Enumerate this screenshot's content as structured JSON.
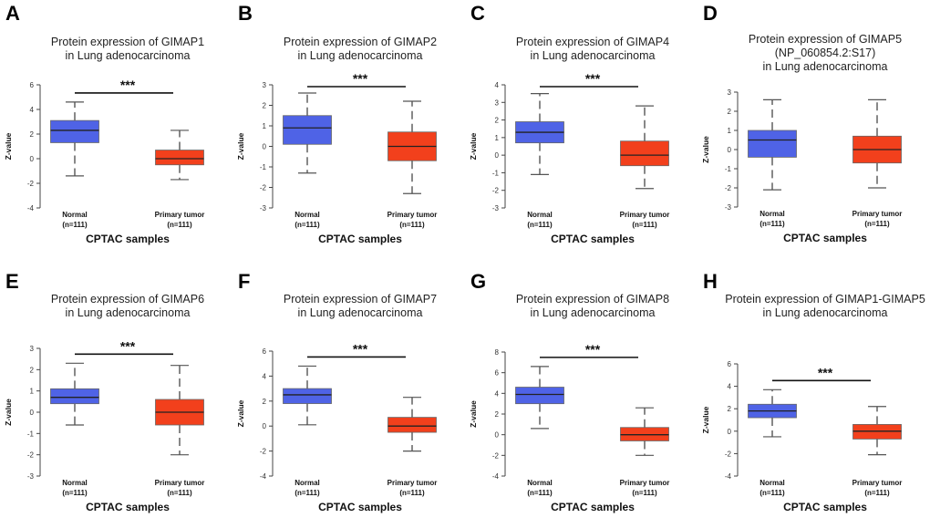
{
  "figure": {
    "colors": {
      "normal": "#4f63e6",
      "tumor": "#f2401c",
      "median": "#222222",
      "whisker": "#555555",
      "axis": "#444444"
    }
  },
  "chart_data": [
    {
      "letter": "A",
      "type": "box",
      "title": [
        "Protein expression of GIMAP1",
        "in Lung adenocarcinoma"
      ],
      "ylabel": "Z-value",
      "ylim": [
        -4,
        6
      ],
      "yticks": [
        -4,
        -2,
        0,
        2,
        4,
        6
      ],
      "xlabel": "CPTAC samples",
      "categories": [
        {
          "name": "Normal",
          "n": "(n=111)"
        },
        {
          "name": "Primary tumor",
          "n": "(n=111)"
        }
      ],
      "significance": "***",
      "boxes": [
        {
          "name": "Normal",
          "min": -1.4,
          "q1": 1.3,
          "median": 2.3,
          "q3": 3.1,
          "max": 4.6
        },
        {
          "name": "Primary tumor",
          "min": -1.7,
          "q1": -0.5,
          "median": 0.0,
          "q3": 0.7,
          "max": 2.3
        }
      ]
    },
    {
      "letter": "B",
      "type": "box",
      "title": [
        "Protein expression of GIMAP2",
        "in Lung adenocarcinoma"
      ],
      "ylabel": "Z-value",
      "ylim": [
        -3,
        3
      ],
      "yticks": [
        -3,
        -2,
        -1,
        0,
        1,
        2,
        3
      ],
      "xlabel": "CPTAC samples",
      "categories": [
        {
          "name": "Normal",
          "n": "(n=111)"
        },
        {
          "name": "Primary tumor",
          "n": "(n=111)"
        }
      ],
      "significance": "***",
      "boxes": [
        {
          "name": "Normal",
          "min": -1.3,
          "q1": 0.1,
          "median": 0.9,
          "q3": 1.5,
          "max": 2.6
        },
        {
          "name": "Primary tumor",
          "min": -2.3,
          "q1": -0.7,
          "median": 0.0,
          "q3": 0.7,
          "max": 2.2
        }
      ]
    },
    {
      "letter": "C",
      "type": "box",
      "title": [
        "Protein expression of GIMAP4",
        "in Lung adenocarcinoma"
      ],
      "ylabel": "Z-value",
      "ylim": [
        -3,
        4
      ],
      "yticks": [
        -3,
        -2,
        -1,
        0,
        1,
        2,
        3,
        4
      ],
      "xlabel": "CPTAC samples",
      "categories": [
        {
          "name": "Normal",
          "n": "(n=111)"
        },
        {
          "name": "Primary tumor",
          "n": "(n=111)"
        }
      ],
      "significance": "***",
      "boxes": [
        {
          "name": "Normal",
          "min": -1.1,
          "q1": 0.7,
          "median": 1.3,
          "q3": 1.9,
          "max": 3.5
        },
        {
          "name": "Primary tumor",
          "min": -1.9,
          "q1": -0.6,
          "median": 0.0,
          "q3": 0.8,
          "max": 2.8
        }
      ]
    },
    {
      "letter": "D",
      "type": "box",
      "title": [
        "Protein expression of GIMAP5",
        "(NP_060854.2:S17)",
        "in Lung adenocarcinoma"
      ],
      "ylabel": "Z-value",
      "ylim": [
        -3,
        3
      ],
      "yticks": [
        -3,
        -2,
        -1,
        0,
        1,
        2,
        3
      ],
      "xlabel": "CPTAC samples",
      "categories": [
        {
          "name": "Normal",
          "n": "(n=111)"
        },
        {
          "name": "Primary tumor",
          "n": "(n=111)"
        }
      ],
      "significance": "",
      "boxes": [
        {
          "name": "Normal",
          "min": -2.1,
          "q1": -0.4,
          "median": 0.5,
          "q3": 1.0,
          "max": 2.6
        },
        {
          "name": "Primary tumor",
          "min": -2.0,
          "q1": -0.7,
          "median": 0.0,
          "q3": 0.7,
          "max": 2.6
        }
      ]
    },
    {
      "letter": "E",
      "type": "box",
      "title": [
        "Protein expression of GIMAP6",
        "in Lung adenocarcinoma"
      ],
      "ylabel": "Z-value",
      "ylim": [
        -3,
        3
      ],
      "yticks": [
        -3,
        -2,
        -1,
        0,
        1,
        2,
        3
      ],
      "xlabel": "CPTAC samples",
      "categories": [
        {
          "name": "Normal",
          "n": "(n=111)"
        },
        {
          "name": "Primary tumor",
          "n": "(n=111)"
        }
      ],
      "significance": "***",
      "boxes": [
        {
          "name": "Normal",
          "min": -0.6,
          "q1": 0.4,
          "median": 0.7,
          "q3": 1.1,
          "max": 2.3
        },
        {
          "name": "Primary tumor",
          "min": -2.0,
          "q1": -0.6,
          "median": 0.0,
          "q3": 0.6,
          "max": 2.2
        }
      ]
    },
    {
      "letter": "F",
      "type": "box",
      "title": [
        "Protein expression of GIMAP7",
        "in Lung adenocarcinoma"
      ],
      "ylabel": "Z-value",
      "ylim": [
        -4,
        6
      ],
      "yticks": [
        -4,
        -2,
        0,
        2,
        4,
        6
      ],
      "xlabel": "CPTAC samples",
      "categories": [
        {
          "name": "Normal",
          "n": "(n=111)"
        },
        {
          "name": "Primary tumor",
          "n": "(n=111)"
        }
      ],
      "significance": "***",
      "boxes": [
        {
          "name": "Normal",
          "min": 0.1,
          "q1": 1.8,
          "median": 2.5,
          "q3": 3.0,
          "max": 4.8
        },
        {
          "name": "Primary tumor",
          "min": -2.0,
          "q1": -0.5,
          "median": 0.0,
          "q3": 0.7,
          "max": 2.3
        }
      ]
    },
    {
      "letter": "G",
      "type": "box",
      "title": [
        "Protein expression of GIMAP8",
        "in Lung adenocarcinoma"
      ],
      "ylabel": "Z-value",
      "ylim": [
        -4,
        8
      ],
      "yticks": [
        -4,
        -2,
        0,
        2,
        4,
        6,
        8
      ],
      "xlabel": "CPTAC samples",
      "categories": [
        {
          "name": "Normal",
          "n": "(n=111)"
        },
        {
          "name": "Primary tumor",
          "n": "(n=111)"
        }
      ],
      "significance": "***",
      "boxes": [
        {
          "name": "Normal",
          "min": 0.6,
          "q1": 3.0,
          "median": 3.9,
          "q3": 4.6,
          "max": 6.6
        },
        {
          "name": "Primary tumor",
          "min": -2.0,
          "q1": -0.6,
          "median": 0.0,
          "q3": 0.7,
          "max": 2.6
        }
      ]
    },
    {
      "letter": "H",
      "type": "box",
      "title": [
        "Protein expression of GIMAP1-GIMAP5",
        "in Lung adenocarcinoma"
      ],
      "ylabel": "Z-value",
      "ylim": [
        -4,
        6
      ],
      "yticks": [
        -4,
        -2,
        0,
        2,
        4,
        6
      ],
      "xlabel": "CPTAC samples",
      "categories": [
        {
          "name": "Normal",
          "n": "(n=111)"
        },
        {
          "name": "Primary tumor",
          "n": "(n=111)"
        }
      ],
      "significance": "***",
      "boxes": [
        {
          "name": "Normal",
          "min": -0.5,
          "q1": 1.2,
          "median": 1.8,
          "q3": 2.4,
          "max": 3.7
        },
        {
          "name": "Primary tumor",
          "min": -2.1,
          "q1": -0.7,
          "median": 0.0,
          "q3": 0.6,
          "max": 2.2
        }
      ]
    }
  ]
}
